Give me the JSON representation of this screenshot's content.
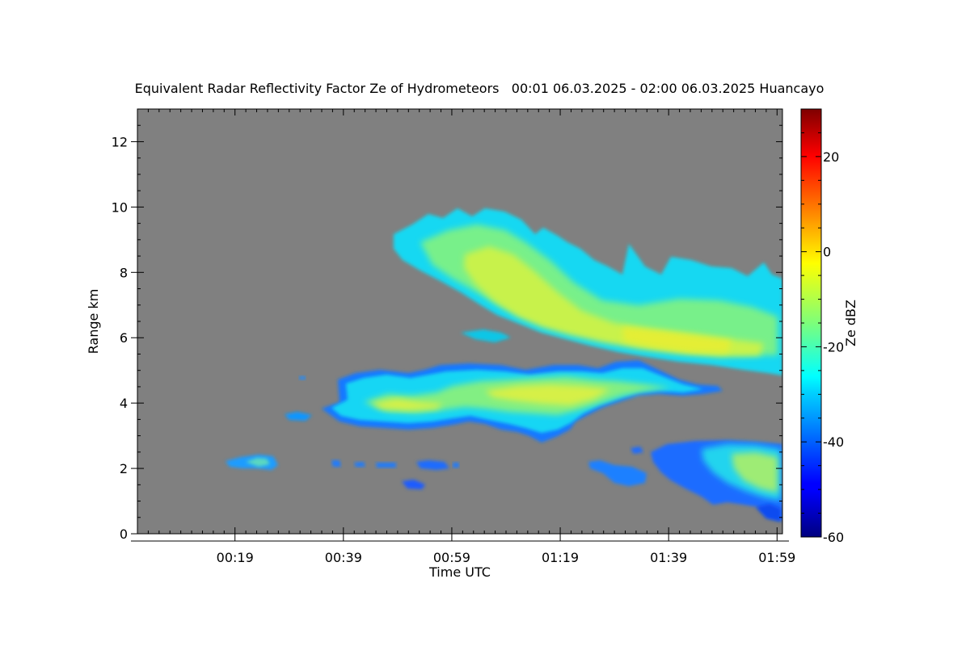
{
  "chart_data": {
    "type": "heatmap",
    "title": "Equivalent Radar Reflectivity Factor Ze of Hydrometeors   00:01 06.03.2025 - 02:00 06.03.2025 Huancayo",
    "xlabel": "Time UTC",
    "ylabel": "Range km",
    "xlim": [
      "00:01",
      "02:00"
    ],
    "ylim": [
      0,
      13
    ],
    "x_tick_labels": [
      "00:19",
      "00:39",
      "00:59",
      "01:19",
      "01:39",
      "01:59"
    ],
    "x_tick_minutes": [
      18,
      38,
      58,
      78,
      98,
      118
    ],
    "y_ticks": [
      0,
      2,
      4,
      6,
      8,
      10,
      12
    ],
    "background_color": "#808080",
    "colorbar": {
      "label": "Ze dBZ",
      "range": [
        -60,
        30
      ],
      "ticks": [
        -60,
        -40,
        -20,
        0,
        20
      ],
      "colormap": "jet"
    },
    "regions": [
      {
        "name": "upper cloud layer",
        "start": "00:48",
        "end": "02:00",
        "base_km": 5.0,
        "top_km": 10.0,
        "max_dbz": -5
      },
      {
        "name": "mid cloud layer",
        "start": "00:27",
        "end": "01:42",
        "base_km": 3.1,
        "top_km": 5.3,
        "max_dbz": -7
      },
      {
        "name": "low cloud cluster",
        "start": "01:29",
        "end": "02:00",
        "base_km": 0.5,
        "top_km": 2.9,
        "max_dbz": -12
      },
      {
        "name": "small echo",
        "start": "00:17",
        "end": "00:26",
        "base_km": 2.0,
        "top_km": 2.6,
        "max_dbz": -18
      }
    ]
  }
}
